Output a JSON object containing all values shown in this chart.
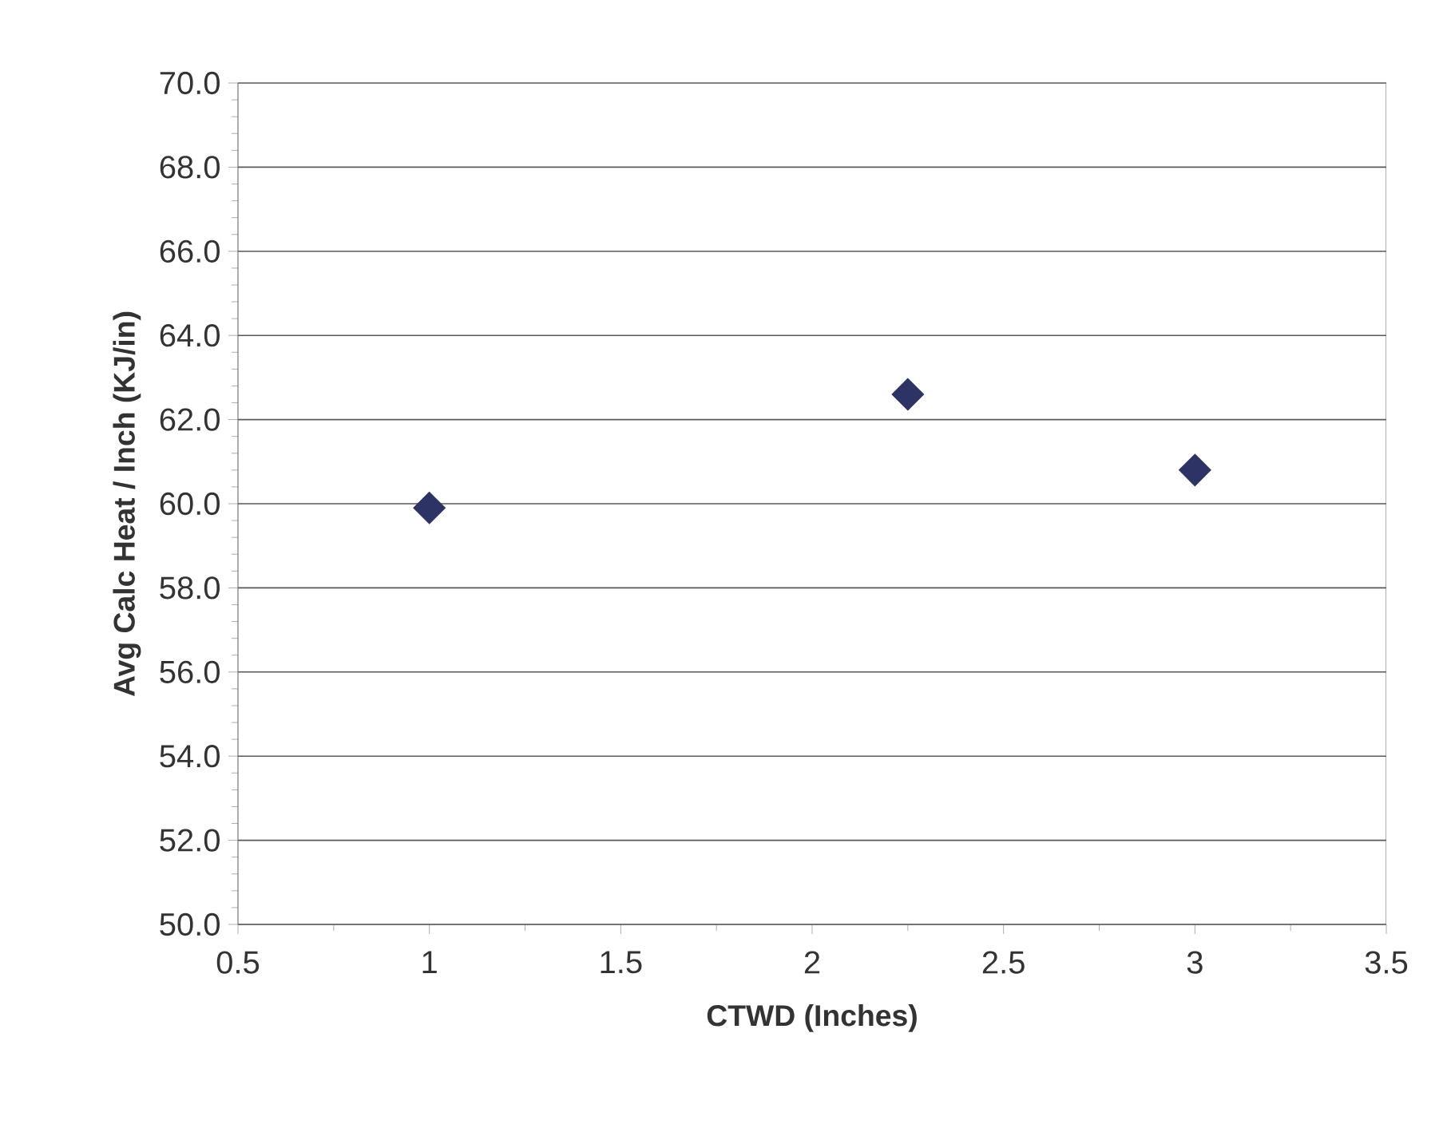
{
  "chart_data": {
    "type": "scatter",
    "xlabel": "CTWD (Inches)",
    "ylabel": "Avg Calc Heat / Inch (KJ/in)",
    "x": [
      1,
      2.25,
      3
    ],
    "series": [
      {
        "color": "#2e3366",
        "values": [
          59.9,
          62.6,
          60.8
        ]
      }
    ],
    "xlim": [
      0.5,
      3.5
    ],
    "xticks": [
      0.5,
      1,
      1.5,
      2,
      2.5,
      3,
      3.5
    ],
    "ylim": [
      50,
      70
    ],
    "yticks": [
      {
        "value": 50,
        "label": "50.0"
      },
      {
        "value": 52,
        "label": "52.0"
      },
      {
        "value": 54,
        "label": "54.0"
      },
      {
        "value": 56,
        "label": "56.0"
      },
      {
        "value": 58,
        "label": "58.0"
      },
      {
        "value": 60,
        "label": "60.0"
      },
      {
        "value": 62,
        "label": "62.0"
      },
      {
        "value": 64,
        "label": "64.0"
      },
      {
        "value": 66,
        "label": "66.0"
      },
      {
        "value": 68,
        "label": "68.0"
      },
      {
        "value": 70,
        "label": "70.0"
      }
    ],
    "grid": "y",
    "marker": "diamond"
  }
}
